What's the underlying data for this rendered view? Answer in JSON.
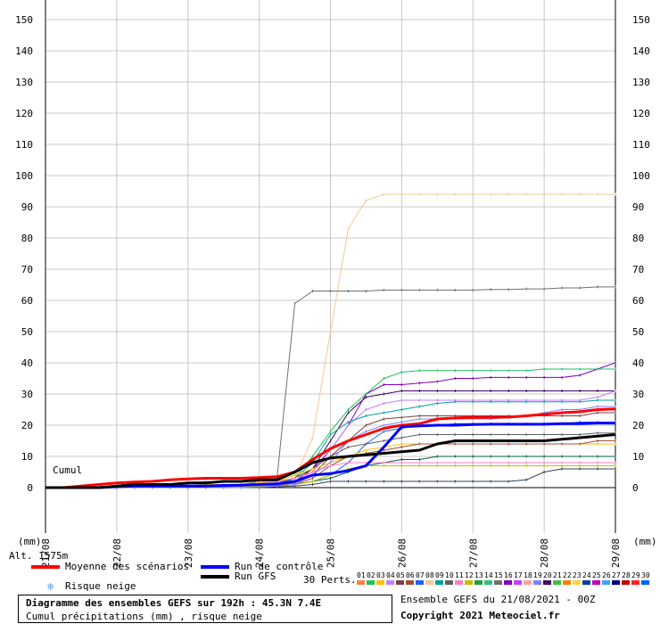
{
  "chart_data": {
    "type": "line",
    "title": "Diagramme des ensembles GEFS sur 192h : 45.3N 7.4E",
    "subtitle": "Cumul précipitations (mm) , risque neige",
    "ylabel": "(mm)",
    "y_axis_left_label": "(mm)",
    "y_axis_right_label": "(mm)",
    "ylim": [
      0,
      150
    ],
    "yticks": [
      0,
      10,
      20,
      30,
      40,
      50,
      60,
      70,
      80,
      90,
      100,
      110,
      120,
      130,
      140,
      150
    ],
    "x_tick_labels": [
      "21/08",
      "22/08",
      "23/08",
      "24/08",
      "25/08",
      "26/08",
      "27/08",
      "28/08",
      "29/08"
    ],
    "xlim_days": [
      0,
      8
    ],
    "cumul_label": "Cumul",
    "altitude_label": "Alt. 1575m",
    "grid": true,
    "x_days": [
      0.25,
      0.5,
      0.75,
      1.0,
      1.25,
      1.5,
      1.75,
      2.0,
      2.25,
      2.5,
      2.75,
      3.0,
      3.25,
      3.5,
      3.75,
      4.0,
      4.25,
      4.5,
      4.75,
      5.0,
      5.25,
      5.5,
      5.75,
      6.0,
      6.25,
      6.5,
      6.75,
      7.0,
      7.25,
      7.5,
      7.75,
      8.0
    ],
    "series": [
      {
        "name": "Moyenne des scénarios",
        "color": "#ff0000",
        "width": 3,
        "values": [
          0,
          0.5,
          1,
          1.5,
          1.8,
          2,
          2.5,
          2.8,
          3,
          3,
          3,
          3.2,
          3.5,
          5,
          9,
          12.5,
          15,
          17,
          19,
          20,
          20.5,
          22,
          22.3,
          22.5,
          22.5,
          22.6,
          23,
          23.5,
          24,
          24.3,
          25,
          25.2
        ]
      },
      {
        "name": "Run de contrôle",
        "color": "#0000ff",
        "width": 3,
        "values": [
          0,
          0,
          0,
          0.3,
          0.5,
          0.5,
          0.5,
          0.5,
          0.5,
          0.7,
          0.8,
          1,
          1.2,
          2,
          4,
          4.5,
          5.5,
          7,
          13,
          19.5,
          19.8,
          20,
          20,
          20.2,
          20.3,
          20.3,
          20.3,
          20.3,
          20.5,
          20.5,
          20.7,
          20.7
        ]
      },
      {
        "name": "Run GFS",
        "color": "#000000",
        "width": 3,
        "values": [
          0,
          0,
          0,
          0.5,
          1,
          1,
          1,
          1.5,
          1.5,
          2,
          2,
          2.5,
          2.5,
          5,
          8,
          9.5,
          10,
          10.5,
          11,
          11.5,
          12,
          14,
          15,
          15,
          15,
          15,
          15,
          15,
          15.5,
          16,
          16.5,
          17
        ]
      },
      {
        "name": "",
        "color": "#f4c890",
        "width": 1,
        "values": [
          0,
          0,
          0,
          0,
          0,
          0,
          0.2,
          0.3,
          0.5,
          0.5,
          0.5,
          0.8,
          1,
          3,
          16,
          50,
          83,
          92,
          94,
          94,
          94,
          94,
          94,
          94,
          94,
          94,
          94,
          94,
          94,
          94,
          94,
          94
        ]
      },
      {
        "name": "",
        "color": "#707070",
        "width": 1,
        "values": [
          0,
          0,
          0,
          0,
          0,
          0,
          0,
          0.3,
          0.5,
          0.5,
          1,
          2,
          3,
          59,
          63,
          63,
          63,
          63,
          63.3,
          63.3,
          63.3,
          63.3,
          63.3,
          63.3,
          63.5,
          63.5,
          63.7,
          63.7,
          64,
          64,
          64.3,
          64.3
        ]
      },
      {
        "name": "",
        "color": "#8000c0",
        "width": 1,
        "values": [
          0,
          0,
          0,
          0,
          0,
          0,
          0.5,
          0.5,
          0.5,
          1,
          1,
          1.5,
          2,
          3,
          6,
          12,
          20,
          30,
          33,
          33,
          33.5,
          34,
          35,
          35,
          35.3,
          35.3,
          35.3,
          35.3,
          35.3,
          36,
          38,
          40
        ]
      },
      {
        "name": "",
        "color": "#20c060",
        "width": 1,
        "values": [
          0,
          0,
          0,
          0,
          0,
          0.3,
          0.3,
          0.5,
          0.5,
          0.5,
          1,
          1,
          1,
          3,
          10,
          18,
          25,
          30,
          35,
          37,
          37.5,
          37.5,
          37.5,
          37.5,
          37.5,
          37.5,
          37.5,
          38,
          38,
          38,
          38,
          38
        ]
      },
      {
        "name": "",
        "color": "#400060",
        "width": 1,
        "values": [
          0,
          0,
          0,
          0,
          0,
          0,
          0,
          0.2,
          0.3,
          0.5,
          0.5,
          0.5,
          1,
          2,
          6,
          15,
          24,
          29,
          30,
          31,
          31,
          31,
          31,
          31,
          31,
          31,
          31,
          31,
          31,
          31,
          31,
          31
        ]
      },
      {
        "name": "",
        "color": "#c080ff",
        "width": 1,
        "values": [
          0,
          0,
          0,
          0,
          0,
          0.5,
          0.5,
          0.5,
          1,
          1,
          1,
          1,
          1,
          2,
          5,
          12,
          20,
          25,
          27,
          28,
          28,
          28,
          28,
          28,
          28,
          28,
          28,
          28,
          28,
          28,
          29,
          31
        ]
      },
      {
        "name": "",
        "color": "#00a0a0",
        "width": 1,
        "values": [
          0,
          0,
          0,
          0,
          0,
          0,
          0.3,
          0.5,
          0.5,
          0.5,
          0.5,
          0.8,
          1,
          3,
          8,
          17,
          21,
          23,
          24,
          25,
          26,
          27,
          27.5,
          27.5,
          27.5,
          27.5,
          27.5,
          27.5,
          27.5,
          27.5,
          28,
          28
        ]
      },
      {
        "name": "",
        "color": "#804040",
        "width": 1,
        "values": [
          0,
          0,
          0,
          0,
          0,
          0,
          0.2,
          0.2,
          0.5,
          0.5,
          0.5,
          0.5,
          0.8,
          1.5,
          4,
          10,
          15,
          20,
          22,
          22.5,
          23,
          23,
          23,
          23,
          23,
          23,
          23,
          23,
          23,
          23,
          24,
          24
        ]
      },
      {
        "name": "",
        "color": "#2060ff",
        "width": 1,
        "values": [
          0,
          0,
          0,
          0,
          0,
          0,
          0,
          0,
          0,
          0.2,
          0.5,
          0.5,
          0.5,
          1,
          2,
          4,
          8,
          14,
          18,
          19,
          20,
          20,
          20.5,
          20.5,
          20.5,
          20.5,
          20.5,
          20.5,
          20.5,
          21,
          21,
          21
        ]
      },
      {
        "name": "",
        "color": "#606060",
        "width": 1,
        "values": [
          0,
          0,
          0,
          0,
          0,
          0,
          0,
          0.3,
          0.5,
          0.5,
          0.5,
          1,
          1.5,
          3,
          6,
          10,
          13,
          14,
          15,
          16,
          17,
          17,
          17,
          17,
          17,
          17,
          17,
          17,
          17,
          17,
          17.5,
          17.5
        ]
      },
      {
        "name": "",
        "color": "#ffc000",
        "width": 1,
        "values": [
          0,
          0,
          0,
          0,
          0,
          0.3,
          0.5,
          0.5,
          1,
          1,
          1,
          1.5,
          2,
          4,
          6,
          8,
          10,
          12,
          13,
          14,
          14,
          14,
          14,
          14,
          14,
          14,
          14,
          14,
          14,
          14,
          14,
          14
        ]
      },
      {
        "name": "",
        "color": "#a05030",
        "width": 1,
        "values": [
          0,
          0,
          0,
          0,
          0,
          0,
          0,
          0,
          0.3,
          0.5,
          0.5,
          0.5,
          0.5,
          1,
          3,
          7,
          10,
          11,
          12,
          13,
          14,
          14,
          14,
          14,
          14,
          14,
          14,
          14,
          14,
          14,
          15,
          15
        ]
      },
      {
        "name": "",
        "color": "#006040",
        "width": 1,
        "values": [
          0,
          0,
          0,
          0,
          0,
          0,
          0,
          0,
          0,
          0,
          0,
          0.3,
          0.5,
          1,
          2,
          3,
          5,
          7,
          8,
          9,
          9,
          10,
          10,
          10,
          10,
          10,
          10,
          10,
          10,
          10,
          10,
          10
        ]
      },
      {
        "name": "",
        "color": "#ff80c0",
        "width": 1,
        "values": [
          0,
          0,
          0,
          0,
          0,
          0.5,
          1,
          1.5,
          2,
          2,
          2,
          2,
          2,
          3,
          5,
          7,
          8,
          8,
          8,
          8,
          8,
          8,
          8,
          8,
          8,
          8,
          8,
          8,
          8,
          8,
          8,
          8
        ]
      },
      {
        "name": "",
        "color": "#c0c000",
        "width": 1,
        "values": [
          0,
          0,
          0,
          0,
          0,
          0,
          0,
          0,
          0,
          0,
          0.3,
          0.5,
          0.5,
          1,
          2,
          4,
          6,
          7,
          7,
          7,
          7,
          7,
          7,
          7,
          7,
          7,
          7,
          7,
          7,
          7,
          7,
          7
        ]
      },
      {
        "name": "",
        "color": "#304050",
        "width": 1,
        "values": [
          0,
          0,
          0,
          0,
          0,
          0,
          0,
          0,
          0,
          0,
          0,
          0,
          0.3,
          0.5,
          1,
          2,
          2,
          2,
          2,
          2,
          2,
          2,
          2,
          2,
          2,
          2,
          2.5,
          5,
          6,
          6,
          6,
          6
        ]
      },
      {
        "name": "",
        "color": "#8080ff",
        "width": 1,
        "values": [
          0,
          0,
          0,
          0,
          0,
          0,
          0,
          0,
          0,
          0,
          0,
          0.3,
          0.5,
          1,
          4,
          8,
          15,
          18,
          20,
          21,
          22,
          22,
          22,
          22,
          22,
          22.5,
          23,
          24,
          25,
          25,
          26,
          26
        ]
      }
    ]
  },
  "legend": {
    "mean_label": "Moyenne des scénarios",
    "control_label": "Run de contrôle",
    "gfs_label": "Run GFS",
    "snow_label": "Risque neige",
    "perts_label": "30 Perts.",
    "colors": {
      "mean": "#ff0000",
      "control": "#0000ff",
      "gfs": "#000000",
      "snow": "#4aa0ff"
    }
  },
  "pert_numbers": [
    "01",
    "02",
    "03",
    "04",
    "05",
    "06",
    "07",
    "08",
    "09",
    "10",
    "11",
    "12",
    "13",
    "14",
    "15",
    "16",
    "17",
    "18",
    "19",
    "20",
    "21",
    "22",
    "23",
    "24",
    "25",
    "26",
    "27",
    "28",
    "29",
    "30"
  ],
  "pert_colors": [
    "#ff8040",
    "#20c060",
    "#ffc000",
    "#c080ff",
    "#804040",
    "#a05030",
    "#2060ff",
    "#f4c890",
    "#00a0a0",
    "#606060",
    "#ff80c0",
    "#c0c000",
    "#20a040",
    "#30c080",
    "#707070",
    "#8000c0",
    "#c040ff",
    "#ffa0a0",
    "#8080ff",
    "#400060",
    "#40c040",
    "#ff8000",
    "#ffd040",
    "#0040a0",
    "#c000c0",
    "#40a0ff",
    "#000080",
    "#c00000",
    "#ff2020",
    "#0060ff"
  ],
  "footer": {
    "title": "Diagramme des ensembles GEFS sur 192h : 45.3N 7.4E",
    "subtitle": "Cumul précipitations (mm) , risque neige",
    "run_info": "Ensemble GEFS du 21/08/2021 - 00Z",
    "copyright": "Copyright 2021 Meteociel.fr"
  }
}
